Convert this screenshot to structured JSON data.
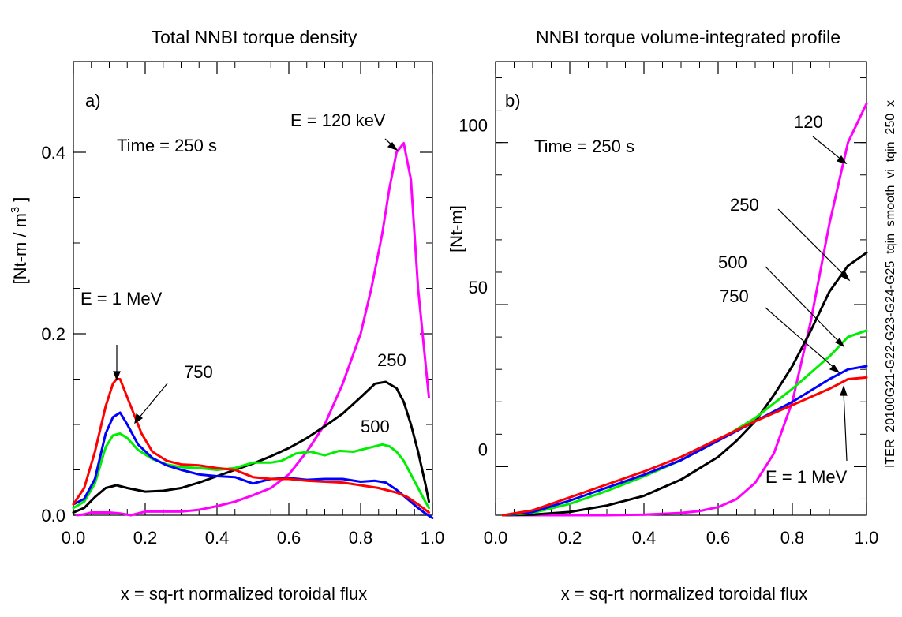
{
  "side_label": "ITER_20100G21-G22-G23-G24-G25_tqin_smooth_vi_tqin_250_x",
  "colors": {
    "e120": "#ff00ff",
    "e250": "#000000",
    "e500": "#00ee00",
    "e750": "#0000ff",
    "e1000": "#ff0000"
  },
  "chart_data": [
    {
      "type": "line",
      "panel": "a)",
      "title": "Total NNBI torque density",
      "xlabel": "x = sq-rt normalized toroidal flux",
      "ylabel": "[Nt-m / m3 ]",
      "xlim": [
        0,
        1
      ],
      "ylim": [
        0,
        0.5
      ],
      "xticks": [
        "0.0",
        "0.2",
        "0.4",
        "0.6",
        "0.8",
        "1.0"
      ],
      "xtick_values": [
        0,
        0.2,
        0.4,
        0.6,
        0.8,
        1.0
      ],
      "yticks": [
        "0.0",
        "0.2",
        "0.4"
      ],
      "ytick_values": [
        0,
        0.2,
        0.4
      ],
      "annotations": {
        "time": "Time = 250 s",
        "e120": "E = 120 keV",
        "e1mev": "E = 1 MeV",
        "e750": "750",
        "e250": "250",
        "e500": "500"
      },
      "series": [
        {
          "key": "e120",
          "x": [
            0.01,
            0.03,
            0.05,
            0.08,
            0.1,
            0.13,
            0.16,
            0.2,
            0.25,
            0.3,
            0.35,
            0.4,
            0.45,
            0.5,
            0.55,
            0.6,
            0.65,
            0.7,
            0.75,
            0.8,
            0.83,
            0.86,
            0.88,
            0.9,
            0.92,
            0.94,
            0.96,
            0.98,
            0.99
          ],
          "y": [
            0,
            0.001,
            0.003,
            0.003,
            0.003,
            0.002,
            0,
            0.004,
            0.004,
            0.004,
            0.006,
            0.01,
            0.015,
            0.022,
            0.03,
            0.045,
            0.07,
            0.1,
            0.145,
            0.2,
            0.25,
            0.31,
            0.36,
            0.4,
            0.41,
            0.37,
            0.25,
            0.17,
            0.13
          ]
        },
        {
          "key": "e250",
          "x": [
            0,
            0.03,
            0.06,
            0.09,
            0.12,
            0.15,
            0.2,
            0.25,
            0.3,
            0.35,
            0.4,
            0.45,
            0.5,
            0.55,
            0.6,
            0.65,
            0.7,
            0.75,
            0.8,
            0.84,
            0.87,
            0.9,
            0.92,
            0.94,
            0.96,
            0.98,
            0.99
          ],
          "y": [
            0.003,
            0.008,
            0.02,
            0.03,
            0.033,
            0.03,
            0.026,
            0.027,
            0.03,
            0.036,
            0.043,
            0.05,
            0.057,
            0.065,
            0.074,
            0.085,
            0.098,
            0.112,
            0.13,
            0.145,
            0.147,
            0.14,
            0.125,
            0.1,
            0.07,
            0.035,
            0.015
          ]
        },
        {
          "key": "e500",
          "x": [
            0,
            0.03,
            0.06,
            0.09,
            0.11,
            0.13,
            0.15,
            0.18,
            0.22,
            0.26,
            0.3,
            0.35,
            0.4,
            0.45,
            0.5,
            0.55,
            0.58,
            0.62,
            0.66,
            0.7,
            0.74,
            0.78,
            0.82,
            0.86,
            0.88,
            0.9,
            0.92,
            0.94,
            0.96,
            0.98,
            0.99
          ],
          "y": [
            0.008,
            0.015,
            0.035,
            0.075,
            0.088,
            0.09,
            0.085,
            0.072,
            0.062,
            0.056,
            0.053,
            0.052,
            0.05,
            0.052,
            0.058,
            0.058,
            0.06,
            0.068,
            0.07,
            0.066,
            0.071,
            0.07,
            0.074,
            0.078,
            0.076,
            0.07,
            0.06,
            0.045,
            0.03,
            0.015,
            0.008
          ]
        },
        {
          "key": "e750",
          "x": [
            0,
            0.03,
            0.06,
            0.09,
            0.11,
            0.13,
            0.15,
            0.18,
            0.22,
            0.26,
            0.3,
            0.35,
            0.4,
            0.45,
            0.5,
            0.55,
            0.6,
            0.65,
            0.7,
            0.75,
            0.8,
            0.84,
            0.87,
            0.9,
            0.93,
            0.96,
            0.98,
            1.0
          ],
          "y": [
            0.012,
            0.018,
            0.04,
            0.09,
            0.108,
            0.113,
            0.1,
            0.078,
            0.063,
            0.055,
            0.05,
            0.045,
            0.043,
            0.042,
            0.035,
            0.04,
            0.041,
            0.039,
            0.04,
            0.04,
            0.037,
            0.038,
            0.036,
            0.028,
            0.018,
            0.008,
            0.002,
            -0.003
          ]
        },
        {
          "key": "e1000",
          "x": [
            0,
            0.03,
            0.06,
            0.09,
            0.11,
            0.12,
            0.13,
            0.14,
            0.16,
            0.19,
            0.22,
            0.26,
            0.3,
            0.35,
            0.4,
            0.45,
            0.5,
            0.55,
            0.6,
            0.65,
            0.7,
            0.75,
            0.8,
            0.85,
            0.88,
            0.9,
            0.93,
            0.96,
            0.98,
            0.99
          ],
          "y": [
            0.012,
            0.03,
            0.07,
            0.12,
            0.145,
            0.15,
            0.15,
            0.14,
            0.12,
            0.09,
            0.07,
            0.06,
            0.056,
            0.055,
            0.052,
            0.05,
            0.042,
            0.04,
            0.04,
            0.038,
            0.037,
            0.036,
            0.033,
            0.03,
            0.027,
            0.025,
            0.02,
            0.012,
            0.006,
            0.003
          ]
        }
      ]
    },
    {
      "type": "line",
      "panel": "b)",
      "title": "NNBI torque volume-integrated profile",
      "xlabel": "x = sq-rt normalized toroidal flux",
      "ylabel": "[Nt-m]",
      "xlim": [
        0,
        1
      ],
      "ylim": [
        -15,
        125
      ],
      "xticks": [
        "0.0",
        "0.2",
        "0.4",
        "0.6",
        "0.8",
        "1.0"
      ],
      "xtick_values": [
        0,
        0.2,
        0.4,
        0.6,
        0.8,
        1.0
      ],
      "yticks": [
        "0",
        "50",
        "100"
      ],
      "ytick_values": [
        0,
        50,
        100
      ],
      "annotations": {
        "time": "Time = 250 s",
        "e120": "120",
        "e250": "250",
        "e500": "500",
        "e750": "750",
        "e1mev": "E = 1 MeV"
      },
      "series": [
        {
          "key": "e120",
          "x": [
            0.02,
            0.1,
            0.2,
            0.3,
            0.4,
            0.5,
            0.55,
            0.6,
            0.65,
            0.7,
            0.75,
            0.8,
            0.85,
            0.9,
            0.95,
            1.0
          ],
          "y": [
            -15,
            -15,
            -15,
            -15,
            -14.8,
            -14.3,
            -13.7,
            -12.5,
            -10,
            -5,
            4,
            20,
            45,
            75,
            100,
            112
          ]
        },
        {
          "key": "e250",
          "x": [
            0.02,
            0.1,
            0.2,
            0.3,
            0.4,
            0.5,
            0.6,
            0.65,
            0.7,
            0.75,
            0.8,
            0.85,
            0.9,
            0.95,
            1.0
          ],
          "y": [
            -15,
            -14.8,
            -14,
            -12,
            -9,
            -4,
            3,
            8,
            14,
            22,
            31,
            42,
            54,
            62,
            66
          ]
        },
        {
          "key": "e500",
          "x": [
            0.02,
            0.1,
            0.2,
            0.3,
            0.4,
            0.5,
            0.6,
            0.7,
            0.8,
            0.9,
            0.95,
            1.0
          ],
          "y": [
            -15,
            -14.3,
            -11.5,
            -7.5,
            -3,
            2,
            8,
            15,
            24,
            34,
            40,
            42
          ]
        },
        {
          "key": "e750",
          "x": [
            0.02,
            0.1,
            0.2,
            0.3,
            0.4,
            0.5,
            0.6,
            0.7,
            0.8,
            0.9,
            0.95,
            1.0
          ],
          "y": [
            -15,
            -14,
            -10.5,
            -6.5,
            -2.5,
            2,
            8,
            14,
            20,
            27,
            30,
            31
          ]
        },
        {
          "key": "e1000",
          "x": [
            0.02,
            0.1,
            0.2,
            0.3,
            0.4,
            0.5,
            0.6,
            0.7,
            0.8,
            0.9,
            0.95,
            1.0
          ],
          "y": [
            -15,
            -13.5,
            -9.5,
            -5.5,
            -1.5,
            3,
            8.5,
            14,
            19,
            24,
            27,
            27.5
          ]
        }
      ]
    }
  ]
}
